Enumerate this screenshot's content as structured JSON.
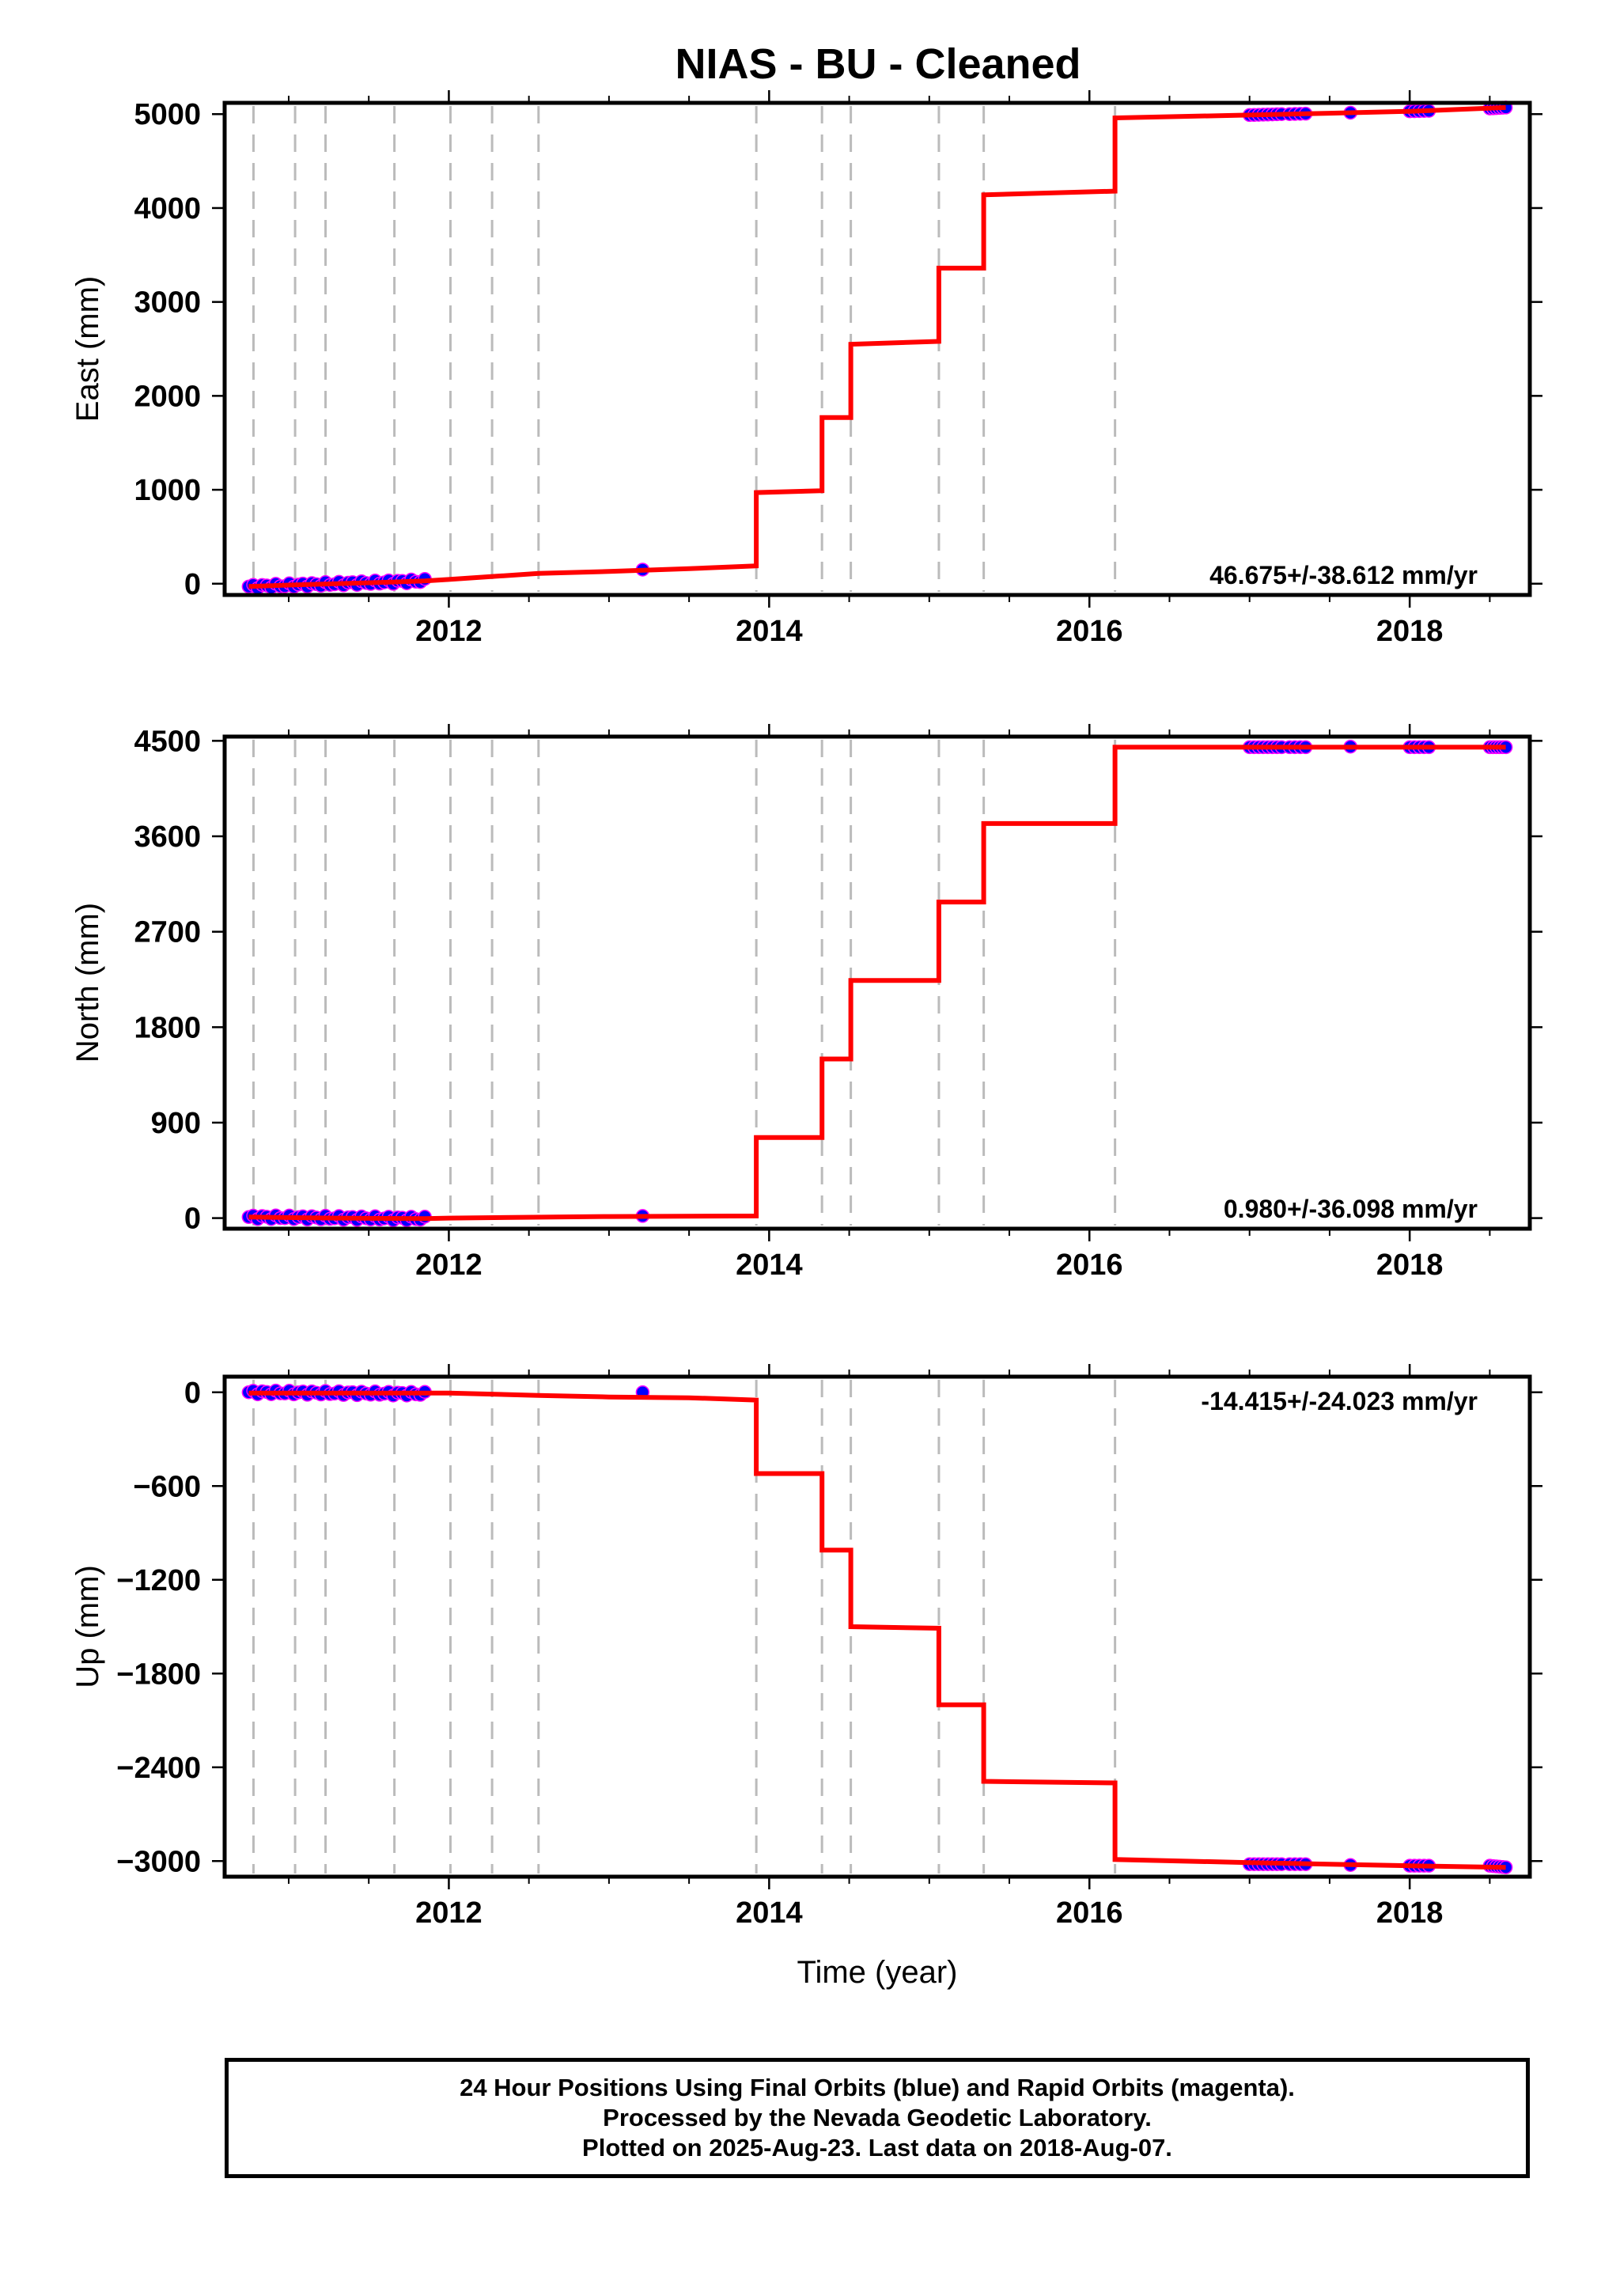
{
  "title": "NIAS  - BU - Cleaned",
  "colors": {
    "model": "#ff0000",
    "final_orbits": "#0000ff",
    "rapid_orbits": "#ff00ff",
    "event_lines": "#bbbbbb",
    "axes": "#000000"
  },
  "chart_data": [
    {
      "type": "line",
      "ylabel": "East (mm)",
      "xlim": [
        2010.6,
        2018.75
      ],
      "ylim": [
        -120,
        5120
      ],
      "yticks": [
        0,
        1000,
        2000,
        3000,
        4000,
        5000
      ],
      "xticks": [
        2012,
        2014,
        2016,
        2018
      ],
      "xtick_labels": [
        "2012",
        "2014",
        "2016",
        "2018"
      ],
      "rate_label": "46.675+/-38.612 mm/yr",
      "rate_position": "bottom-right",
      "event_lines": [
        2010.78,
        2011.04,
        2011.23,
        2011.66,
        2012.01,
        2012.27,
        2012.56,
        2013.92,
        2014.33,
        2014.51,
        2015.06,
        2015.34,
        2016.16
      ],
      "model": {
        "x": [
          2010.75,
          2011.0,
          2011.3,
          2011.6,
          2011.85,
          2012.0,
          2012.3,
          2012.56,
          2013.0,
          2013.5,
          2013.92,
          2013.92,
          2014.33,
          2014.33,
          2014.51,
          2014.51,
          2015.06,
          2015.06,
          2015.34,
          2015.34,
          2016.16,
          2016.16,
          2017.0,
          2017.5,
          2018.0,
          2018.6
        ],
        "y": [
          -30,
          -15,
          0,
          15,
          30,
          45,
          80,
          110,
          130,
          160,
          190,
          970,
          990,
          1770,
          1770,
          2550,
          2580,
          3360,
          3360,
          4140,
          4180,
          4960,
          4990,
          5010,
          5030,
          5070
        ]
      },
      "observations": [
        {
          "x_start": 2010.75,
          "x_end": 2011.85,
          "y_start": -30,
          "y_end": 30,
          "count": 40
        },
        {
          "x_start": 2013.21,
          "x_end": 2013.21,
          "y_start": 150,
          "y_end": 150,
          "count": 1
        },
        {
          "x_start": 2017.0,
          "x_end": 2017.2,
          "y_start": 4990,
          "y_end": 5000,
          "count": 8
        },
        {
          "x_start": 2017.25,
          "x_end": 2017.35,
          "y_start": 5000,
          "y_end": 5005,
          "count": 4
        },
        {
          "x_start": 2017.63,
          "x_end": 2017.63,
          "y_start": 5015,
          "y_end": 5015,
          "count": 1
        },
        {
          "x_start": 2018.0,
          "x_end": 2018.12,
          "y_start": 5030,
          "y_end": 5035,
          "count": 5
        },
        {
          "x_start": 2018.5,
          "x_end": 2018.6,
          "y_start": 5060,
          "y_end": 5070,
          "count": 6
        }
      ]
    },
    {
      "type": "line",
      "ylabel": "North (mm)",
      "xlim": [
        2010.6,
        2018.75
      ],
      "ylim": [
        -100,
        4540
      ],
      "yticks": [
        0,
        900,
        1800,
        2700,
        3600,
        4500
      ],
      "xticks": [
        2012,
        2014,
        2016,
        2018
      ],
      "xtick_labels": [
        "2012",
        "2014",
        "2016",
        "2018"
      ],
      "rate_label": "0.980+/-36.098 mm/yr",
      "rate_position": "bottom-right",
      "event_lines": [
        2010.78,
        2011.04,
        2011.23,
        2011.66,
        2012.01,
        2012.27,
        2012.56,
        2013.92,
        2014.33,
        2014.51,
        2015.06,
        2015.34,
        2016.16
      ],
      "model": {
        "x": [
          2010.75,
          2011.3,
          2011.85,
          2012.0,
          2013.0,
          2013.92,
          2013.92,
          2014.33,
          2014.33,
          2014.51,
          2014.51,
          2015.06,
          2015.06,
          2015.34,
          2015.34,
          2016.16,
          2016.16,
          2017.0,
          2018.0,
          2018.6
        ],
        "y": [
          10,
          0,
          -5,
          0,
          15,
          20,
          760,
          760,
          1500,
          1500,
          2240,
          2240,
          2980,
          2980,
          3720,
          3720,
          4440,
          4440,
          4440,
          4440
        ]
      },
      "observations": [
        {
          "x_start": 2010.75,
          "x_end": 2011.85,
          "y_start": 10,
          "y_end": -5,
          "count": 40
        },
        {
          "x_start": 2013.21,
          "x_end": 2013.21,
          "y_start": 20,
          "y_end": 20,
          "count": 1
        },
        {
          "x_start": 2017.0,
          "x_end": 2017.2,
          "y_start": 4440,
          "y_end": 4440,
          "count": 8
        },
        {
          "x_start": 2017.25,
          "x_end": 2017.35,
          "y_start": 4440,
          "y_end": 4440,
          "count": 4
        },
        {
          "x_start": 2017.63,
          "x_end": 2017.63,
          "y_start": 4445,
          "y_end": 4445,
          "count": 1
        },
        {
          "x_start": 2018.0,
          "x_end": 2018.12,
          "y_start": 4440,
          "y_end": 4440,
          "count": 5
        },
        {
          "x_start": 2018.5,
          "x_end": 2018.6,
          "y_start": 4440,
          "y_end": 4440,
          "count": 6
        }
      ]
    },
    {
      "type": "line",
      "ylabel": "Up (mm)",
      "xlim": [
        2010.6,
        2018.75
      ],
      "ylim": [
        -3100,
        100
      ],
      "yticks": [
        0,
        -600,
        -1200,
        -1800,
        -2400,
        -3000
      ],
      "xticks": [
        2012,
        2014,
        2016,
        2018
      ],
      "xtick_labels": [
        "2012",
        "2014",
        "2016",
        "2018"
      ],
      "xlabel": "Time (year)",
      "rate_label": "-14.415+/-24.023 mm/yr",
      "rate_position": "top-right",
      "event_lines": [
        2010.78,
        2011.04,
        2011.23,
        2011.66,
        2012.01,
        2012.27,
        2012.56,
        2013.92,
        2014.33,
        2014.51,
        2015.06,
        2015.34,
        2016.16
      ],
      "model": {
        "x": [
          2010.75,
          2011.3,
          2011.85,
          2012.0,
          2012.56,
          2013.0,
          2013.5,
          2013.92,
          2013.92,
          2014.33,
          2014.33,
          2014.51,
          2014.51,
          2015.06,
          2015.06,
          2015.34,
          2015.34,
          2016.16,
          2016.16,
          2017.0,
          2017.5,
          2018.0,
          2018.6
        ],
        "y": [
          -5,
          -5,
          -5,
          -5,
          -20,
          -30,
          -35,
          -50,
          -520,
          -520,
          -1010,
          -1010,
          -1500,
          -1510,
          -2000,
          -2000,
          -2490,
          -2500,
          -2990,
          -3010,
          -3020,
          -3030,
          -3040
        ]
      },
      "observations": [
        {
          "x_start": 2010.75,
          "x_end": 2011.85,
          "y_start": 0,
          "y_end": -10,
          "count": 40
        },
        {
          "x_start": 2013.21,
          "x_end": 2013.21,
          "y_start": 0,
          "y_end": 0,
          "count": 1
        },
        {
          "x_start": 2017.0,
          "x_end": 2017.2,
          "y_start": -3020,
          "y_end": -3020,
          "count": 8
        },
        {
          "x_start": 2017.25,
          "x_end": 2017.35,
          "y_start": -3020,
          "y_end": -3020,
          "count": 4
        },
        {
          "x_start": 2017.63,
          "x_end": 2017.63,
          "y_start": -3025,
          "y_end": -3025,
          "count": 1
        },
        {
          "x_start": 2018.0,
          "x_end": 2018.12,
          "y_start": -3030,
          "y_end": -3030,
          "count": 5
        },
        {
          "x_start": 2018.5,
          "x_end": 2018.6,
          "y_start": -3030,
          "y_end": -3040,
          "count": 6
        }
      ]
    }
  ],
  "footer": {
    "line1": "24 Hour Positions Using Final Orbits (blue) and Rapid Orbits (magenta).",
    "line2": "Processed by the Nevada Geodetic Laboratory.",
    "line3": "Plotted on 2025-Aug-23. Last data on 2018-Aug-07."
  }
}
